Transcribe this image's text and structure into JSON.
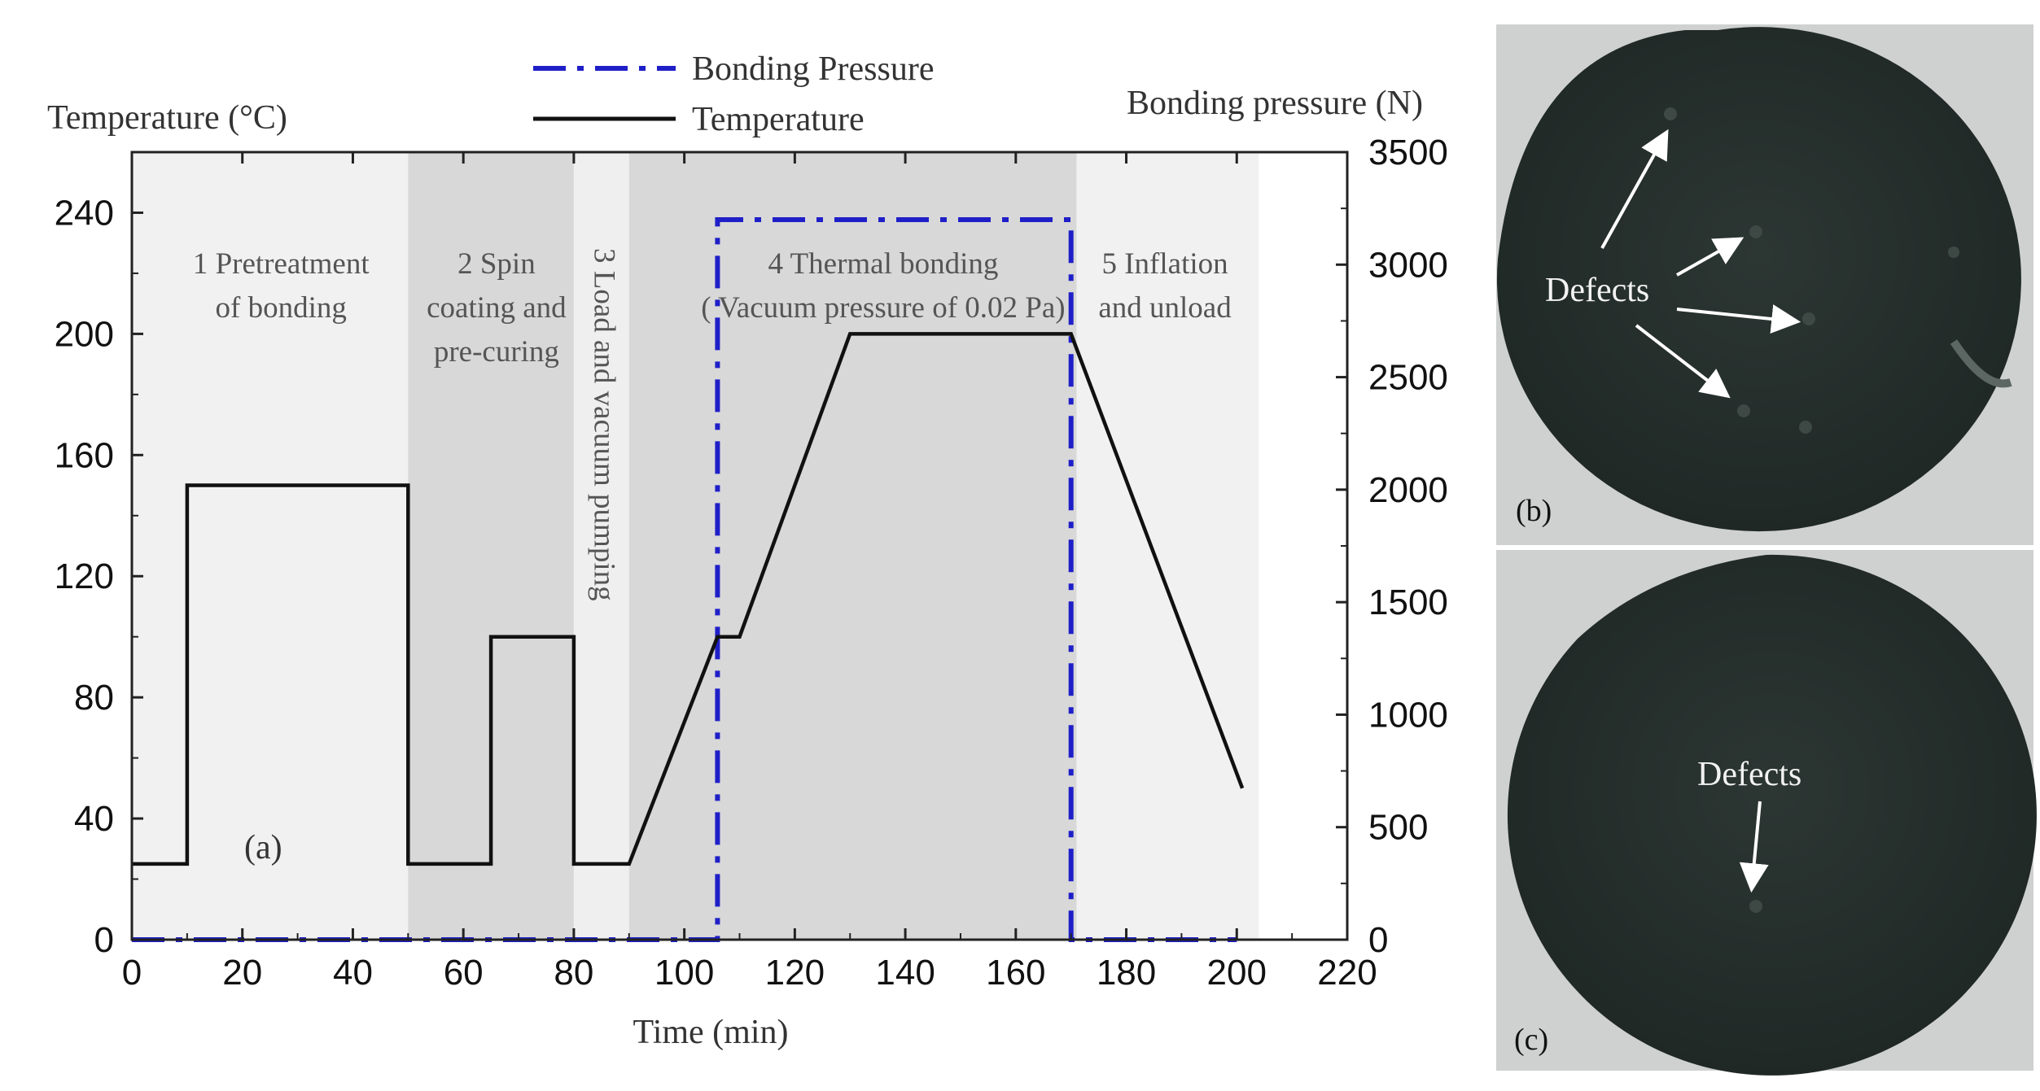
{
  "chart_data": {
    "type": "line",
    "panel_label": "(a)",
    "xlabel": "Time (min)",
    "ylabel_left": "Temperature (°C)",
    "ylabel_right": "Bonding pressure (N)",
    "xlim": [
      0,
      220
    ],
    "ylim_left": [
      0,
      260
    ],
    "ylim_right": [
      0,
      3500
    ],
    "x_ticks": [
      0,
      20,
      40,
      60,
      80,
      100,
      120,
      140,
      160,
      180,
      200,
      220
    ],
    "y_ticks_left": [
      0,
      40,
      80,
      120,
      160,
      200,
      240
    ],
    "y_ticks_right": [
      0,
      500,
      1000,
      1500,
      2000,
      2500,
      3000,
      3500
    ],
    "grid": false,
    "legend_position": "top-center",
    "series": [
      {
        "name": "Bonding Pressure",
        "axis": "right",
        "style": "dash-dot",
        "color": "#1f1fc8",
        "x": [
          0,
          106,
          106,
          170,
          170,
          200
        ],
        "y": [
          0,
          0,
          3200,
          3200,
          0,
          0
        ]
      },
      {
        "name": "Temperature",
        "axis": "left",
        "style": "solid",
        "color": "#111111",
        "x": [
          0,
          10,
          10,
          50,
          50,
          65,
          65,
          80,
          80,
          90,
          106,
          110,
          130,
          170,
          201
        ],
        "y": [
          25,
          25,
          150,
          150,
          25,
          25,
          100,
          100,
          25,
          25,
          100,
          100,
          200,
          200,
          50
        ]
      }
    ],
    "phases": [
      {
        "x_start": 0,
        "x_end": 50,
        "fill": "#f1f1f1",
        "lines": [
          "1 Pretreatment",
          "of bonding"
        ],
        "label_x": 27,
        "orient": "horizontal"
      },
      {
        "x_start": 50,
        "x_end": 80,
        "fill": "#d8d8d8",
        "lines": [
          "2 Spin",
          "coating and",
          "pre-curing"
        ],
        "label_x": 66,
        "orient": "horizontal"
      },
      {
        "x_start": 80,
        "x_end": 90,
        "fill": "#efefef",
        "lines": [
          "3 Load and vacuum pumping"
        ],
        "label_x": 85,
        "orient": "vertical"
      },
      {
        "x_start": 90,
        "x_end": 171,
        "fill": "#d8d8d8",
        "lines": [
          "4 Thermal bonding",
          "( Vacuum pressure of 0.02 Pa)"
        ],
        "label_x": 136,
        "orient": "horizontal"
      },
      {
        "x_start": 171,
        "x_end": 204,
        "fill": "#f1f1f1",
        "lines": [
          "5 Inflation",
          "and unload"
        ],
        "label_x": 187,
        "orient": "horizontal"
      }
    ]
  },
  "photos": [
    {
      "label": "(b)",
      "defect_label": "Defects"
    },
    {
      "label": "(c)",
      "defect_label": "Defects"
    }
  ]
}
